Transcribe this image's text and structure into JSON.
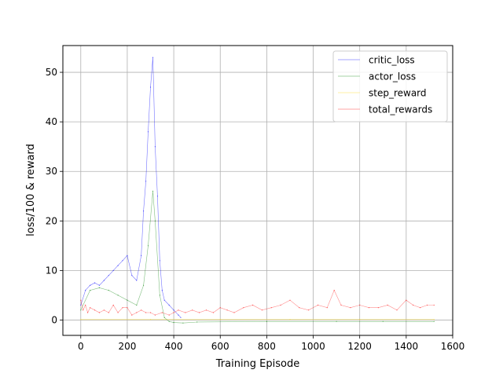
{
  "chart_data": {
    "type": "line",
    "title": "",
    "xlabel": "Training Episode",
    "ylabel": "loss/100 & reward",
    "xlim": [
      -77,
      1600
    ],
    "ylim": [
      -3.1,
      55.4
    ],
    "xticks": [
      0,
      200,
      400,
      600,
      800,
      1000,
      1200,
      1400,
      1600
    ],
    "xtick_labels": [
      "0",
      "200",
      "400",
      "600",
      "800",
      "1000",
      "1200",
      "1400",
      "1600"
    ],
    "yticks": [
      0,
      10,
      20,
      30,
      40,
      50
    ],
    "ytick_labels": [
      "0",
      "10",
      "20",
      "30",
      "40",
      "50"
    ],
    "grid": true,
    "legend_position": "top-right",
    "series": [
      {
        "name": "critic_loss",
        "color": "#0000ff",
        "x": [
          0,
          20,
          40,
          60,
          80,
          100,
          120,
          140,
          160,
          180,
          200,
          220,
          240,
          260,
          270,
          280,
          290,
          300,
          310,
          320,
          330,
          340,
          350,
          360,
          380,
          400,
          420,
          430
        ],
        "y": [
          3,
          6,
          7,
          7.5,
          7,
          8,
          9,
          10,
          11,
          12,
          13,
          9,
          8,
          13,
          22,
          28,
          38,
          47,
          53,
          35,
          25,
          12,
          6,
          4,
          3,
          2,
          1,
          0.5
        ]
      },
      {
        "name": "actor_loss",
        "color": "#008000",
        "x": [
          0,
          40,
          80,
          120,
          160,
          200,
          240,
          270,
          290,
          310,
          320,
          340,
          360,
          380,
          400,
          440,
          500,
          800,
          1100,
          1300,
          1520
        ],
        "y": [
          2,
          6,
          6.5,
          6,
          5,
          4,
          3,
          7,
          15,
          26,
          20,
          5,
          0.5,
          -0.3,
          -0.5,
          -0.6,
          -0.4,
          -0.3,
          -0.3,
          -0.3,
          -0.3
        ]
      },
      {
        "name": "step_reward",
        "color": "#ffd700",
        "x": [
          0,
          300,
          600,
          900,
          1200,
          1520
        ],
        "y": [
          0.1,
          0.1,
          0.1,
          0.1,
          0.1,
          0.1
        ]
      },
      {
        "name": "total_rewards",
        "color": "#ff0000",
        "x": [
          0,
          10,
          20,
          30,
          40,
          60,
          80,
          100,
          120,
          140,
          160,
          180,
          200,
          220,
          240,
          260,
          280,
          300,
          320,
          350,
          380,
          400,
          420,
          450,
          480,
          510,
          540,
          570,
          600,
          630,
          660,
          700,
          740,
          780,
          820,
          860,
          900,
          940,
          980,
          1020,
          1060,
          1090,
          1120,
          1160,
          1200,
          1240,
          1280,
          1320,
          1360,
          1400,
          1430,
          1460,
          1490,
          1520
        ],
        "y": [
          4,
          2,
          3,
          1.5,
          2.5,
          2,
          1.5,
          2,
          1.5,
          3,
          1.5,
          2.5,
          2.5,
          1,
          1.5,
          2,
          1.5,
          1.5,
          1,
          1.5,
          1,
          1.5,
          2,
          1.5,
          2,
          1.5,
          2,
          1.5,
          2.5,
          2,
          1.5,
          2.5,
          3,
          2,
          2.5,
          3,
          4,
          2.5,
          2,
          3,
          2.5,
          6,
          3,
          2.5,
          3,
          2.5,
          2.5,
          3,
          2,
          4,
          3,
          2.5,
          3,
          3
        ]
      }
    ]
  }
}
